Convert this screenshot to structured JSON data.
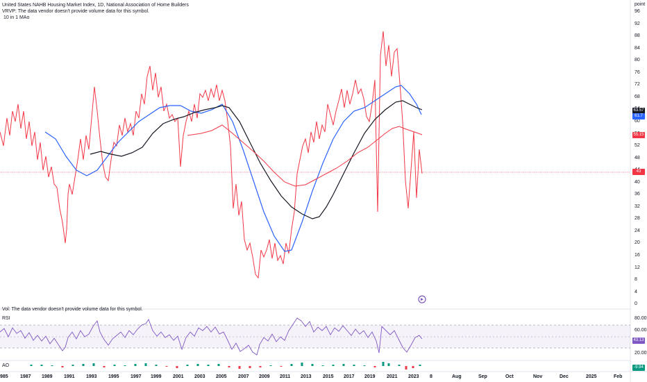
{
  "header": {
    "title": "United States NAHB Housing Market Index, 1D, National Association of Home Builders",
    "vrvp": "VRVP: The data vendor doesn't provide volume data for this symbol.",
    "ma": "10 in 1 MAo"
  },
  "price_axis": {
    "unit": "point",
    "ticks": [
      "96",
      "92",
      "88",
      "84",
      "80",
      "76",
      "72",
      "68",
      "64",
      "60",
      "56",
      "52",
      "48",
      "44",
      "40",
      "36",
      "32",
      "28",
      "24",
      "20",
      "16",
      "12",
      "8",
      "4",
      "0"
    ],
    "labels": {
      "black": "63.57",
      "blue": "61.7",
      "red": "55.15",
      "last": "43"
    }
  },
  "vol_pane": {
    "text": "Vol: The data vendor doesn't provide volume data for this symbol."
  },
  "rsi_pane": {
    "label": "RSI",
    "ticks": [
      "80.00",
      "60.00",
      "20.00"
    ],
    "value": "43.13"
  },
  "ao_pane": {
    "label": "AO",
    "value": "-9.94"
  },
  "time_axis": {
    "labels": [
      "985",
      "1987",
      "1989",
      "1991",
      "1993",
      "1995",
      "1997",
      "1999",
      "2001",
      "2003",
      "2005",
      "2007",
      "2009",
      "2011",
      "2013",
      "2015",
      "2017",
      "2019",
      "2021",
      "2023",
      "8",
      "Aug",
      "Sep",
      "Oct",
      "Nov",
      "Dec",
      "2025",
      "Feb"
    ]
  },
  "colors": {
    "red": "#f23645",
    "blue": "#2962ff",
    "black": "#131722",
    "purple": "#7e57c2",
    "green": "#089981"
  },
  "icons": {
    "replay": "replay-icon"
  }
}
